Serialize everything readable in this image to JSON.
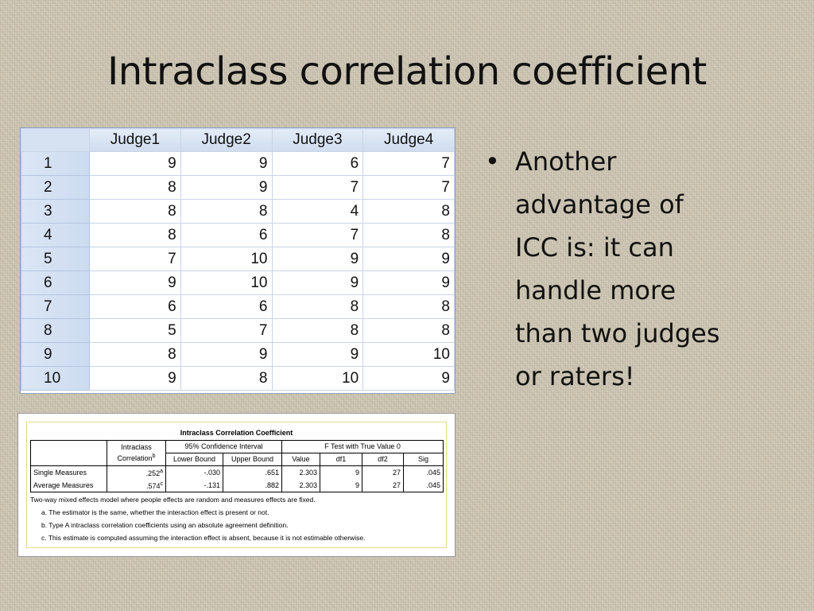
{
  "title": "Intraclass correlation coefficient",
  "data_view": {
    "columns": [
      "Judge1",
      "Judge2",
      "Judge3",
      "Judge4"
    ],
    "rows": [
      {
        "id": "1",
        "values": [
          "9",
          "9",
          "6",
          "7"
        ]
      },
      {
        "id": "2",
        "values": [
          "8",
          "9",
          "7",
          "7"
        ]
      },
      {
        "id": "3",
        "values": [
          "8",
          "8",
          "4",
          "8"
        ]
      },
      {
        "id": "4",
        "values": [
          "8",
          "6",
          "7",
          "8"
        ]
      },
      {
        "id": "5",
        "values": [
          "7",
          "10",
          "9",
          "9"
        ]
      },
      {
        "id": "6",
        "values": [
          "9",
          "10",
          "9",
          "9"
        ]
      },
      {
        "id": "7",
        "values": [
          "6",
          "6",
          "8",
          "8"
        ]
      },
      {
        "id": "8",
        "values": [
          "5",
          "7",
          "8",
          "8"
        ]
      },
      {
        "id": "9",
        "values": [
          "8",
          "9",
          "9",
          "10"
        ]
      },
      {
        "id": "10",
        "values": [
          "9",
          "8",
          "10",
          "9"
        ]
      }
    ]
  },
  "icc_output": {
    "title": "Intraclass Correlation Coefficient",
    "header": {
      "icc_label": "Intraclass Correlation",
      "icc_sup": "b",
      "ci_label": "95% Confidence Interval",
      "ftest_label": "F Test with True Value 0",
      "lower": "Lower Bound",
      "upper": "Upper Bound",
      "value": "Value",
      "df1": "df1",
      "df2": "df2",
      "sig": "Sig"
    },
    "rows": [
      {
        "label": "Single Measures",
        "icc": ".252",
        "sup": "a",
        "lower": "-.030",
        "upper": ".651",
        "value": "2.303",
        "df1": "9",
        "df2": "27",
        "sig": ".045"
      },
      {
        "label": "Average Measures",
        "icc": ".574",
        "sup": "c",
        "lower": "-.131",
        "upper": ".882",
        "value": "2.303",
        "df1": "9",
        "df2": "27",
        "sig": ".045"
      }
    ],
    "notes": {
      "model": "Two-way mixed effects model where people effects are random and measures effects are fixed.",
      "a": "a. The estimator is the same, whether the interaction effect is present or not.",
      "b": "b. Type A intraclass correlation coefficients using an absolute agreement definition.",
      "c": "c. This estimate is computed assuming the interaction effect is absent, because it is not estimable otherwise."
    }
  },
  "bullet": {
    "text": "Another\nadvantage of\nICC is: it can\nhandle more\nthan two judges\nor raters!"
  },
  "colors": {
    "background": "#cdc5b3",
    "grid_header": "#d6e1f1",
    "output_border": "#e6d98a"
  }
}
